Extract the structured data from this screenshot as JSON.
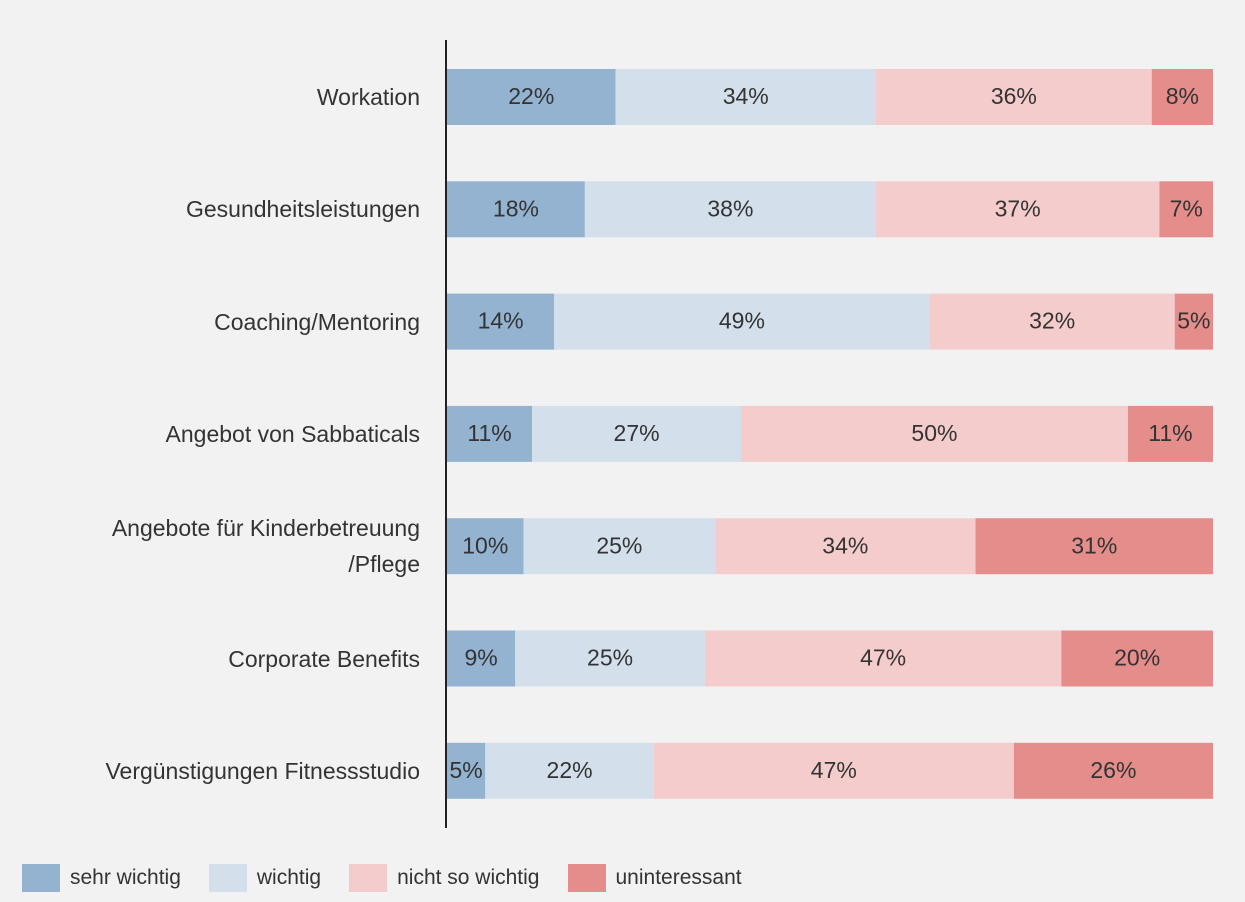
{
  "chart_data": {
    "type": "bar",
    "orientation": "horizontal",
    "stacking": "percent",
    "categories": [
      "Workation",
      "Gesundheitsleistungen",
      "Coaching/Mentoring",
      "Angebot von Sabbaticals",
      "Angebote für Kinderbetreuung\n/Pflege",
      "Corporate Benefits",
      "Vergünstigungen Fitnessstudio"
    ],
    "series": [
      {
        "name": "sehr wichtig",
        "color": "#93b3d1",
        "values": [
          22,
          18,
          14,
          11,
          10,
          9,
          5
        ],
        "value_labels": [
          "22%",
          "18%",
          "14%",
          "11%",
          "10%",
          "9%",
          "5%"
        ]
      },
      {
        "name": "wichtig",
        "color": "#d3e0ec",
        "values": [
          34,
          38,
          49,
          27,
          25,
          25,
          22
        ],
        "value_labels": [
          "34%",
          "38%",
          "49%",
          "27%",
          "25%",
          "25%",
          "22%"
        ]
      },
      {
        "name": "nicht so wichtig",
        "color": "#f5cccc",
        "values": [
          36,
          37,
          32,
          50,
          34,
          47,
          47
        ],
        "value_labels": [
          "36%",
          "37%",
          "32%",
          "50%",
          "34%",
          "47%",
          "47%"
        ]
      },
      {
        "name": "uninteressant",
        "color": "#e48d8b",
        "values": [
          8,
          7,
          5,
          11,
          31,
          20,
          26
        ],
        "value_labels": [
          "8%",
          "7%",
          "5%",
          "11%",
          "31%",
          "20%",
          "26%"
        ]
      }
    ],
    "legend": "bottom"
  }
}
